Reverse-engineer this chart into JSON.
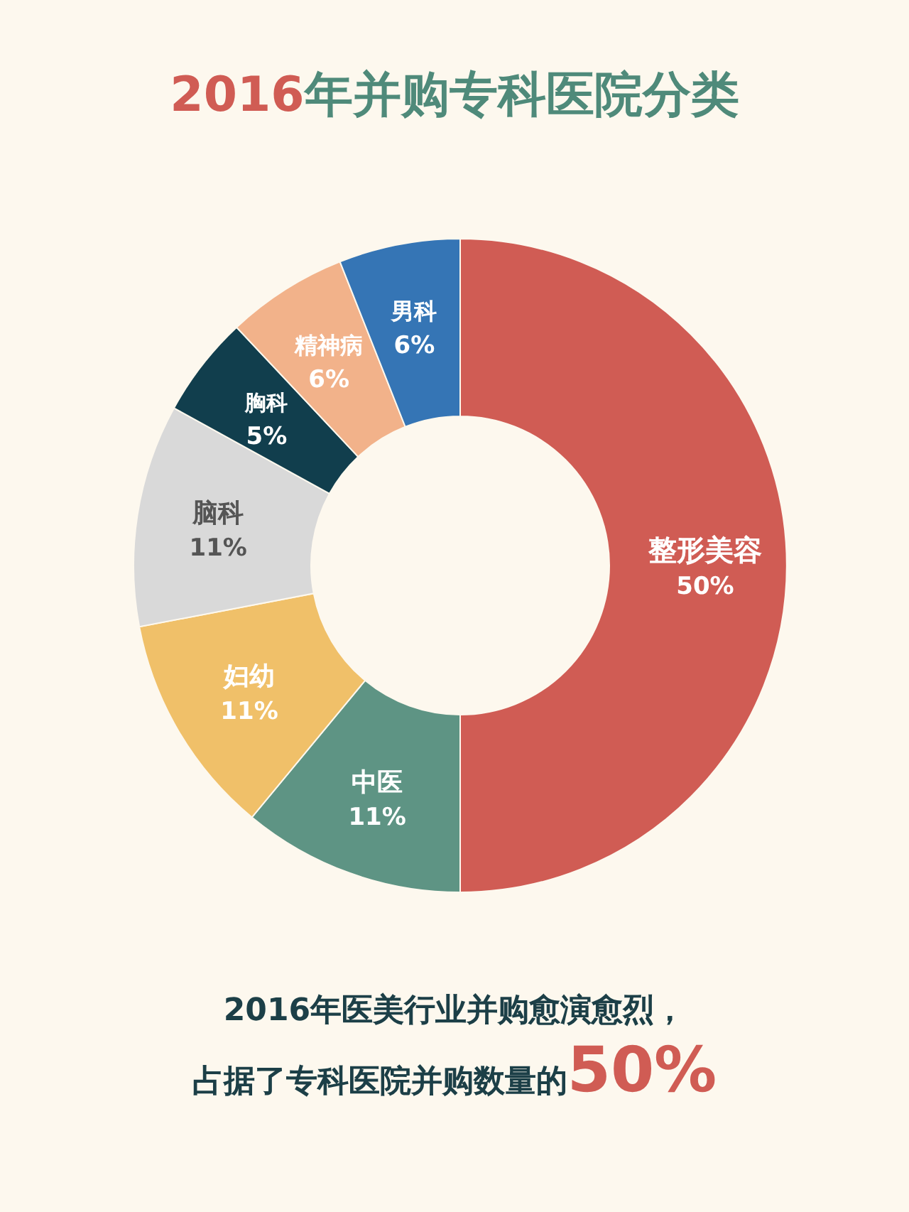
{
  "chart_data": {
    "type": "donut",
    "title": "2016年并购专科医院分类",
    "categories": [
      "整形美容",
      "中医",
      "妇幼",
      "脑科",
      "胸科",
      "精神病",
      "男科"
    ],
    "values": [
      50,
      11,
      11,
      11,
      5,
      6,
      6
    ],
    "value_labels": [
      "50%",
      "11%",
      "11%",
      "11%",
      "5%",
      "6%",
      "6%"
    ],
    "colors": [
      "#d05c54",
      "#5e9484",
      "#f0c069",
      "#d9d9d9",
      "#113e4d",
      "#f2b28a",
      "#3575b5"
    ],
    "annotations": [
      "2016年医美行业并购愈演愈烈，",
      "占据了专科医院并购数量的50%"
    ]
  }
}
